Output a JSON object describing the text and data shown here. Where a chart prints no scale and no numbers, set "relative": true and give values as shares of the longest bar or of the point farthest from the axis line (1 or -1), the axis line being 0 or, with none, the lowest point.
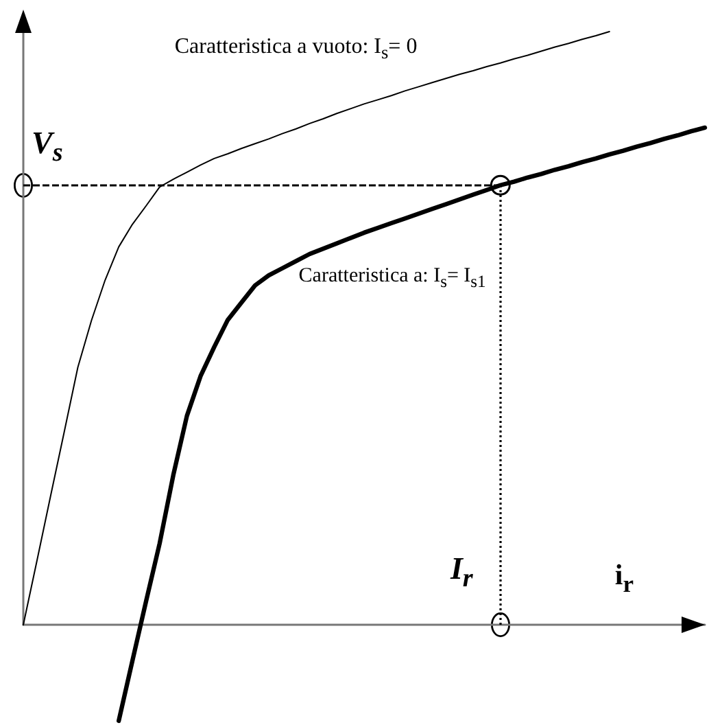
{
  "chart_data": {
    "type": "line",
    "relative": true,
    "xlabel": "i$_{r}$",
    "categories": [
      null,
      null,
      null,
      null,
      null,
      null,
      null,
      null,
      null,
      null,
      null,
      null,
      null,
      null,
      null,
      null,
      null,
      null,
      null,
      null,
      null,
      null,
      null,
      null,
      null,
      null,
      null,
      null,
      null,
      null,
      null,
      null,
      null,
      null,
      null,
      null,
      null,
      null,
      null,
      null,
      null,
      null,
      null,
      null,
      null,
      null,
      null,
      null,
      null,
      null,
      null
    ],
    "series": [
      {
        "name": "Caratteristica a vuoto: I$_{s}$= 0",
        "color": "#000000",
        "values": [
          0,
          0.108,
          0.217,
          0.325,
          0.434,
          0.513,
          0.581,
          0.637,
          0.675,
          0.706,
          0.738,
          0.751,
          0.763,
          0.775,
          0.786,
          0.794,
          0.803,
          0.811,
          0.819,
          0.828,
          0.836,
          0.845,
          0.853,
          0.862,
          0.87,
          0.878,
          0.885,
          0.892,
          0.9,
          0.907,
          0.914,
          0.921,
          0.928,
          0.934,
          0.941,
          0.947,
          0.954,
          0.96,
          0.967,
          0.974,
          0.98,
          0.987,
          0.993,
          1,
          null,
          null,
          null,
          null,
          null,
          null,
          null
        ]
      },
      {
        "name": "Caratteristica a: I$_{s}$= I$_{s1}$",
        "color": "#000000",
        "values": [
          null,
          null,
          null,
          null,
          null,
          null,
          null,
          -0.162,
          -0.061,
          0.039,
          0.137,
          0.252,
          0.352,
          0.419,
          0.468,
          0.514,
          0.543,
          0.572,
          0.589,
          0.601,
          0.613,
          0.625,
          0.634,
          0.643,
          0.652,
          0.661,
          0.669,
          0.677,
          0.685,
          0.693,
          0.701,
          0.709,
          0.717,
          0.725,
          0.733,
          0.741,
          0.747,
          0.754,
          0.76,
          0.767,
          0.773,
          0.78,
          0.786,
          0.793,
          0.799,
          0.806,
          0.812,
          0.819,
          0.825,
          0.832,
          0.838
        ]
      }
    ],
    "ref_lines": [
      {
        "axis": "y",
        "value": 0.741,
        "label": "V$_{s}$",
        "line_style": "dashed",
        "color": "#000000"
      }
    ],
    "annotations": [
      "I$_{r}$"
    ],
    "marker": "none",
    "line_style": "solid"
  }
}
